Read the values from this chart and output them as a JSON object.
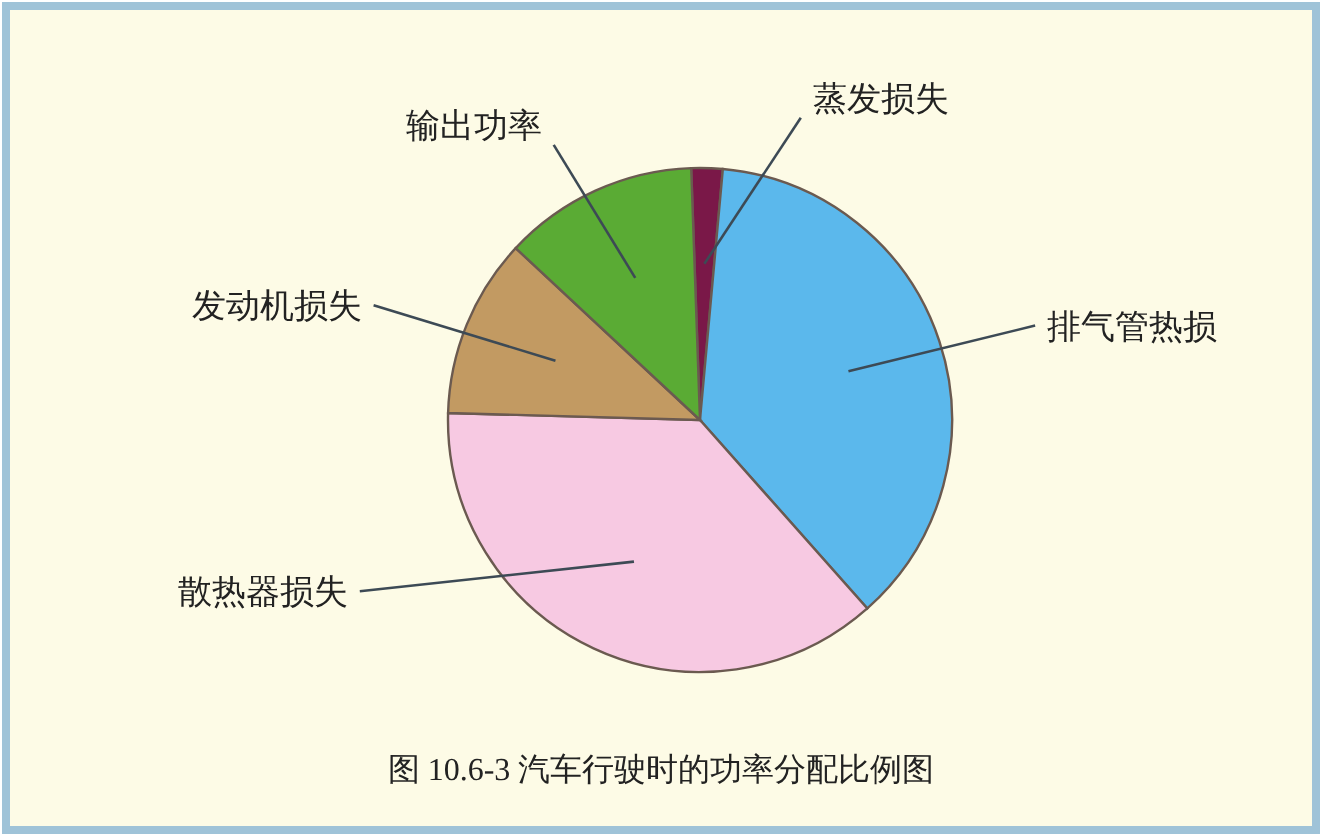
{
  "chart_data": {
    "type": "pie",
    "title": "图 10.6-3 汽车行驶时的功率分配比例图",
    "categories": [
      "蒸发损失",
      "排气管热损",
      "散热器损失",
      "发动机损失",
      "输出功率"
    ],
    "values": [
      2,
      37,
      37,
      11.5,
      12.5
    ],
    "colors": [
      "#7a1848",
      "#5bb8ec",
      "#f7c9e2",
      "#c29a62",
      "#5aab34"
    ]
  }
}
